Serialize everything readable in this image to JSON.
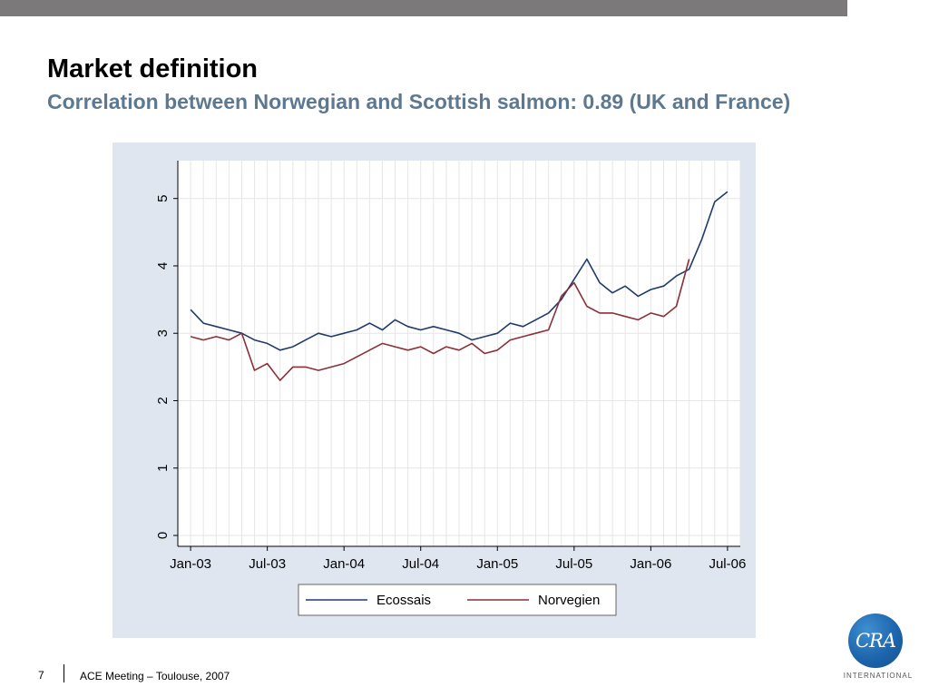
{
  "slide": {
    "title": "Market definition",
    "subtitle": "Correlation between Norwegian and Scottish salmon: 0.89 (UK and France)",
    "page_number": "7",
    "footer": "ACE Meeting – Toulouse, 2007",
    "logo": {
      "mark": "CRA",
      "text": "INTERNATIONAL"
    }
  },
  "colors": {
    "topbar": "#7b7979",
    "subtitle": "#5d7891",
    "panel_bg": "#dfe6f0",
    "ecossais": "#1f3b6b",
    "norvegien": "#8b2f38"
  },
  "chart_data": {
    "type": "line",
    "x_ticks": [
      "Jan-03",
      "Jul-03",
      "Jan-04",
      "Jul-04",
      "Jan-05",
      "Jul-05",
      "Jan-06",
      "Jul-06"
    ],
    "y_ticks": [
      "0",
      "1",
      "2",
      "3",
      "4",
      "5"
    ],
    "ylim": [
      0,
      5.4
    ],
    "xlim": [
      "2002-12",
      "2006-08"
    ],
    "grid": true,
    "legend_position": "bottom",
    "series": [
      {
        "name": "Ecossais",
        "color": "#1f3b6b",
        "x": [
          "2003-01",
          "2003-02",
          "2003-03",
          "2003-04",
          "2003-05",
          "2003-06",
          "2003-07",
          "2003-08",
          "2003-09",
          "2003-10",
          "2003-11",
          "2003-12",
          "2004-01",
          "2004-02",
          "2004-03",
          "2004-04",
          "2004-05",
          "2004-06",
          "2004-07",
          "2004-08",
          "2004-09",
          "2004-10",
          "2004-11",
          "2004-12",
          "2005-01",
          "2005-02",
          "2005-03",
          "2005-04",
          "2005-05",
          "2005-06",
          "2005-07",
          "2005-08",
          "2005-09",
          "2005-10",
          "2005-11",
          "2005-12",
          "2006-01",
          "2006-02",
          "2006-03",
          "2006-04",
          "2006-05",
          "2006-06",
          "2006-07"
        ],
        "values": [
          3.35,
          3.15,
          3.1,
          3.05,
          3.0,
          2.9,
          2.85,
          2.75,
          2.8,
          2.9,
          3.0,
          2.95,
          3.0,
          3.05,
          3.15,
          3.05,
          3.2,
          3.1,
          3.05,
          3.1,
          3.05,
          3.0,
          2.9,
          2.95,
          3.0,
          3.15,
          3.1,
          3.2,
          3.3,
          3.5,
          3.8,
          4.1,
          3.75,
          3.6,
          3.7,
          3.55,
          3.65,
          3.7,
          3.85,
          3.95,
          4.4,
          4.95,
          5.1
        ]
      },
      {
        "name": "Norvegien",
        "color": "#8b2f38",
        "x": [
          "2003-01",
          "2003-02",
          "2003-03",
          "2003-04",
          "2003-05",
          "2003-06",
          "2003-07",
          "2003-08",
          "2003-09",
          "2003-10",
          "2003-11",
          "2003-12",
          "2004-01",
          "2004-02",
          "2004-03",
          "2004-04",
          "2004-05",
          "2004-06",
          "2004-07",
          "2004-08",
          "2004-09",
          "2004-10",
          "2004-11",
          "2004-12",
          "2005-01",
          "2005-02",
          "2005-03",
          "2005-04",
          "2005-05",
          "2005-06",
          "2005-07",
          "2005-08",
          "2005-09",
          "2005-10",
          "2005-11",
          "2005-12",
          "2006-01",
          "2006-02",
          "2006-03",
          "2006-04"
        ],
        "values": [
          2.95,
          2.9,
          2.95,
          2.9,
          3.0,
          2.45,
          2.55,
          2.3,
          2.5,
          2.5,
          2.45,
          2.5,
          2.55,
          2.65,
          2.75,
          2.85,
          2.8,
          2.75,
          2.8,
          2.7,
          2.8,
          2.75,
          2.85,
          2.7,
          2.75,
          2.9,
          2.95,
          3.0,
          3.05,
          3.55,
          3.75,
          3.4,
          3.3,
          3.3,
          3.25,
          3.2,
          3.3,
          3.25,
          3.4,
          4.1
        ]
      }
    ]
  }
}
